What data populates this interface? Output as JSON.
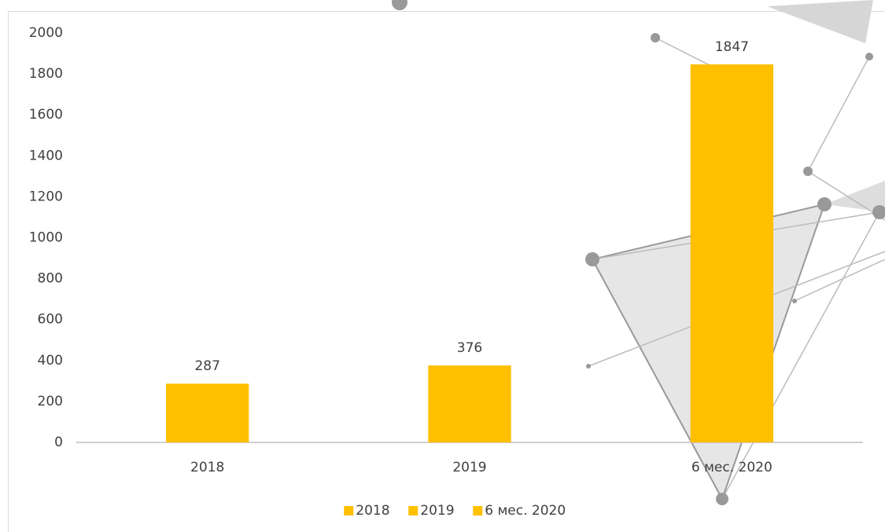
{
  "chart_data": {
    "type": "bar",
    "categories": [
      "2018",
      "2019",
      "6 мес. 2020"
    ],
    "values": [
      287,
      376,
      1847
    ],
    "color": "#FFC000",
    "ylim": [
      0,
      2000
    ],
    "yticks": [
      0,
      200,
      400,
      600,
      800,
      1000,
      1200,
      1400,
      1600,
      1800,
      2000
    ],
    "grid": false,
    "legend": "bottom"
  }
}
